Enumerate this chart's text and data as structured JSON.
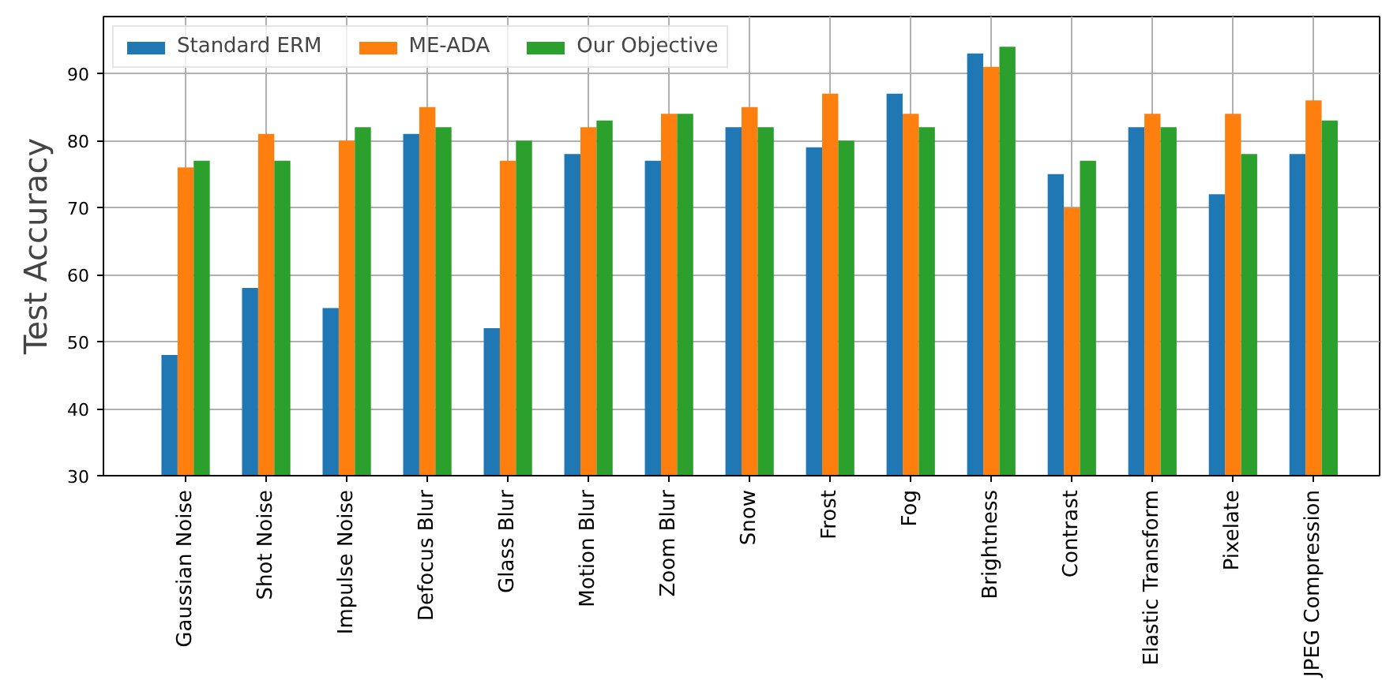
{
  "chart_data": {
    "type": "bar",
    "ylabel": "Test Accuracy",
    "categories": [
      "Gaussian Noise",
      "Shot Noise",
      "Impulse Noise",
      "Defocus Blur",
      "Glass Blur",
      "Motion Blur",
      "Zoom Blur",
      "Snow",
      "Frost",
      "Fog",
      "Brightness",
      "Contrast",
      "Elastic Transform",
      "Pixelate",
      "JPEG Compression"
    ],
    "series": [
      {
        "name": "Standard ERM",
        "color": "#1f77b4",
        "values": [
          48,
          58,
          55,
          81,
          52,
          78,
          77,
          82,
          79,
          87,
          93,
          75,
          82,
          72,
          78
        ]
      },
      {
        "name": "ME-ADA",
        "color": "#ff7f0e",
        "values": [
          76,
          81,
          80,
          85,
          77,
          82,
          84,
          85,
          87,
          84,
          91,
          70,
          84,
          84,
          86
        ]
      },
      {
        "name": "Our Objective",
        "color": "#2ca02c",
        "values": [
          77,
          77,
          82,
          82,
          80,
          83,
          84,
          82,
          80,
          82,
          94,
          77,
          82,
          78,
          83
        ]
      }
    ],
    "ylim": [
      30,
      98.5
    ],
    "yticks": [
      30,
      40,
      50,
      60,
      70,
      80,
      90
    ],
    "grid": true,
    "legend": "top left"
  }
}
